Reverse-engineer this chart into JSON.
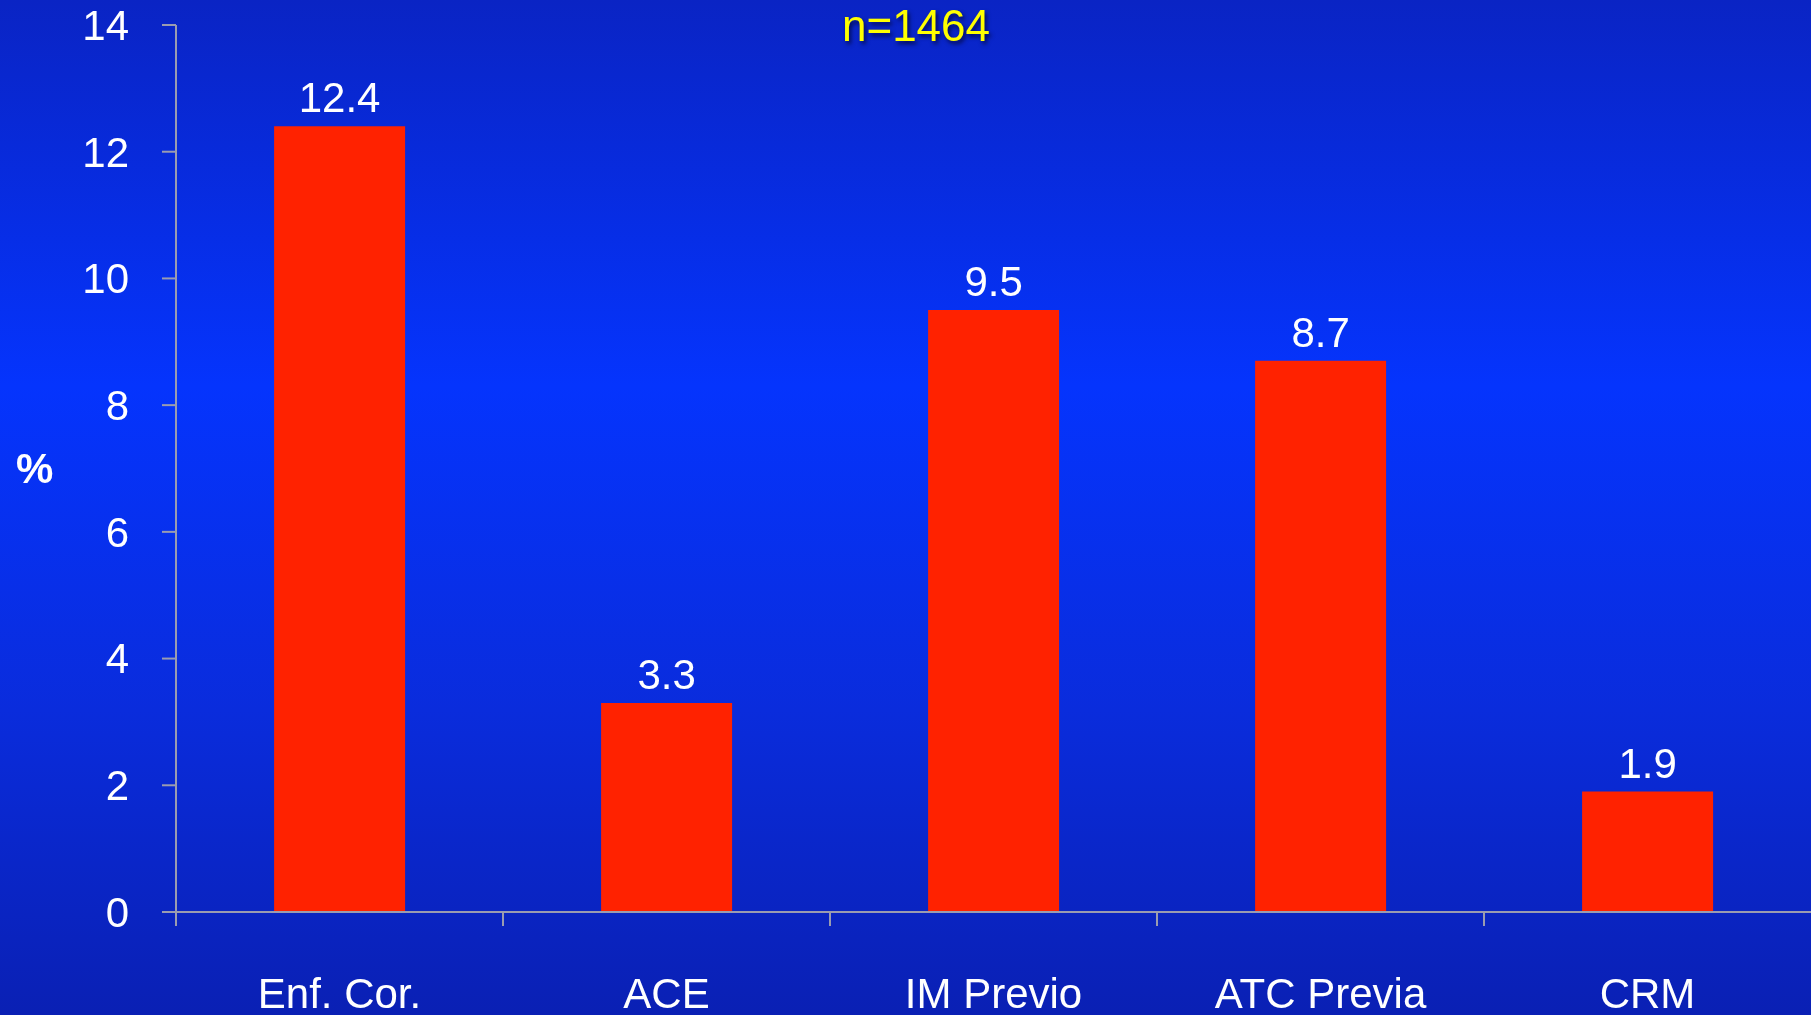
{
  "chart_data": {
    "type": "bar",
    "title": "n=1464",
    "ylabel": "%",
    "categories": [
      "Enf. Cor.",
      "ACE",
      "IM Previo",
      "ATC Previa",
      "CRM"
    ],
    "values": [
      12.4,
      3.3,
      9.5,
      8.7,
      1.9
    ],
    "color": "#ff2200",
    "ylim": [
      0,
      14
    ],
    "yticks": [
      0,
      2,
      4,
      6,
      8,
      10,
      12,
      14
    ],
    "data_labels": true
  }
}
